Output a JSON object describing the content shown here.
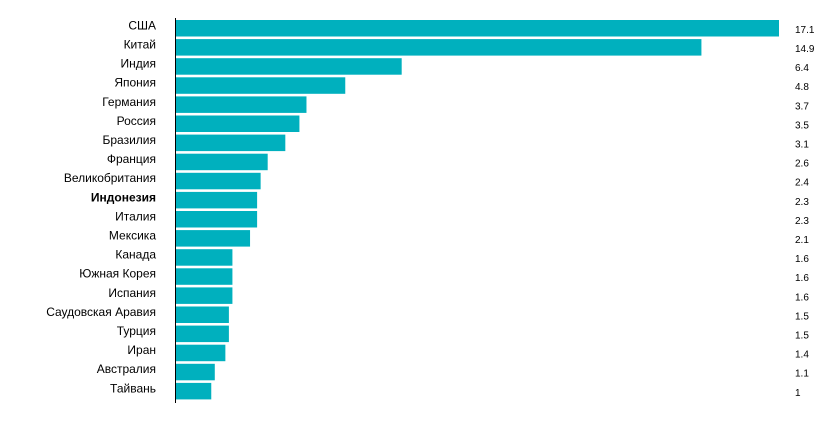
{
  "chart_data": {
    "type": "hbar",
    "categories": [
      "США",
      "Китай",
      "Индия",
      "Япония",
      "Германия",
      "Россия",
      "Бразилия",
      "Франция",
      "Великобритания",
      "Индонезия",
      "Италия",
      "Мексика",
      "Канада",
      "Южная Корея",
      "Испания",
      "Саудовская Аравия",
      "Турция",
      "Иран",
      "Австралия",
      "Тайвань"
    ],
    "values": [
      17.1,
      14.9,
      6.4,
      4.8,
      3.7,
      3.5,
      3.1,
      2.6,
      2.4,
      2.3,
      2.3,
      2.1,
      1.6,
      1.6,
      1.6,
      1.5,
      1.5,
      1.4,
      1.1,
      1
    ],
    "color": "#00b0be",
    "highlight_index": 9
  }
}
